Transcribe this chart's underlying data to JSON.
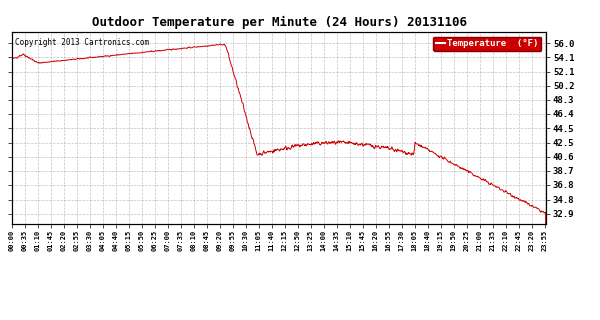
{
  "title": "Outdoor Temperature per Minute (24 Hours) 20131106",
  "copyright_text": "Copyright 2013 Cartronics.com",
  "legend_label": "Temperature  (°F)",
  "line_color": "#cc0000",
  "background_color": "#ffffff",
  "grid_color": "#999999",
  "yticks": [
    32.9,
    34.8,
    36.8,
    38.7,
    40.6,
    42.5,
    44.5,
    46.4,
    48.3,
    50.2,
    52.1,
    54.1,
    56.0
  ],
  "legend_bg": "#cc0000",
  "legend_text_color": "#ffffff",
  "ymin": 31.5,
  "ymax": 57.5
}
